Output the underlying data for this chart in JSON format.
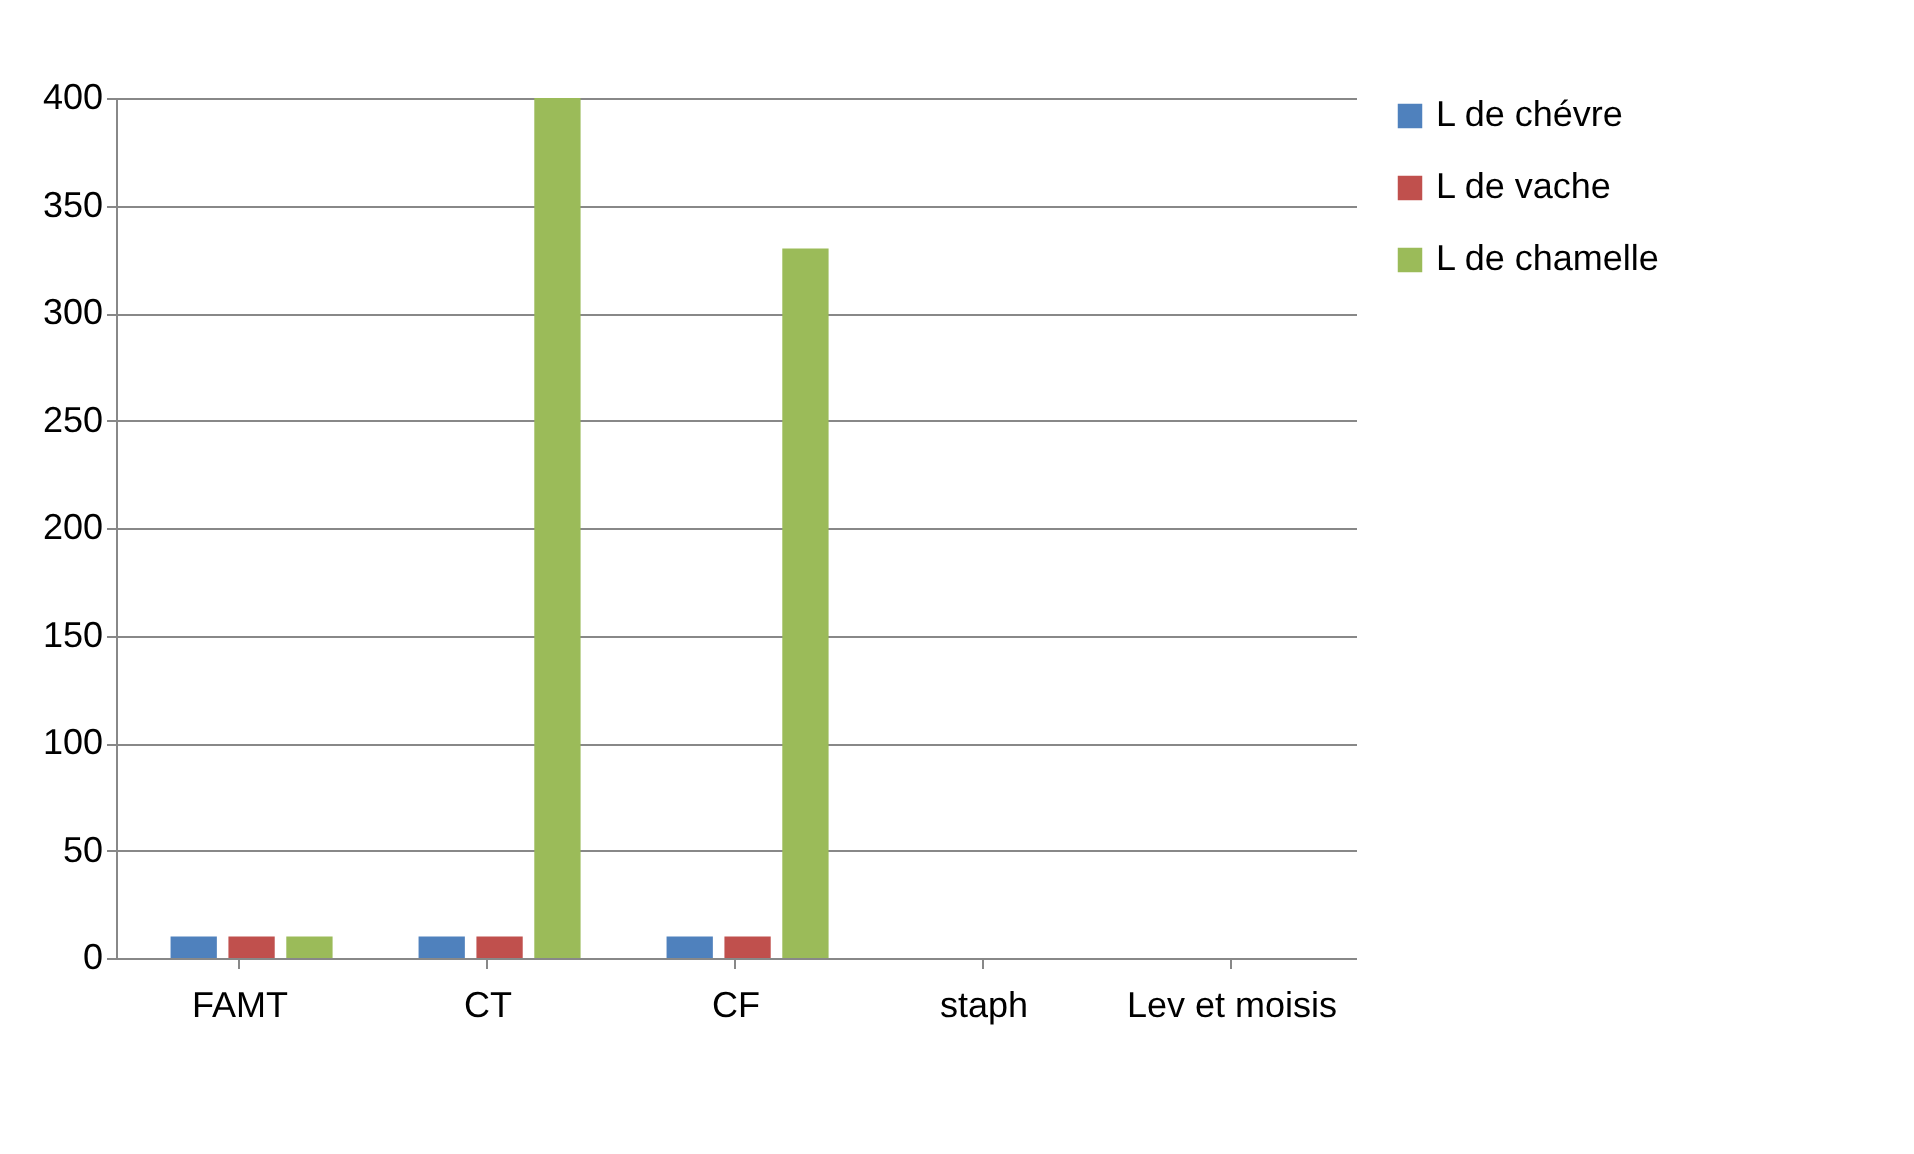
{
  "chart_data": {
    "type": "bar",
    "categories": [
      "FAMT",
      "CT",
      "CF",
      "staph",
      "Lev et moisis"
    ],
    "series": [
      {
        "name": "L de chévre",
        "color": "#4f81bd",
        "values": [
          10,
          10,
          10,
          0,
          0
        ]
      },
      {
        "name": "L de vache",
        "color": "#c0504d",
        "values": [
          10,
          10,
          10,
          0,
          0
        ]
      },
      {
        "name": "L de chamelle",
        "color": "#9bbb59",
        "values": [
          10,
          400,
          330,
          0,
          0
        ]
      }
    ],
    "ylim": [
      0,
      400
    ],
    "yticks": [
      0,
      50,
      100,
      150,
      200,
      250,
      300,
      350,
      400
    ],
    "grid": "y",
    "legend": "right"
  }
}
